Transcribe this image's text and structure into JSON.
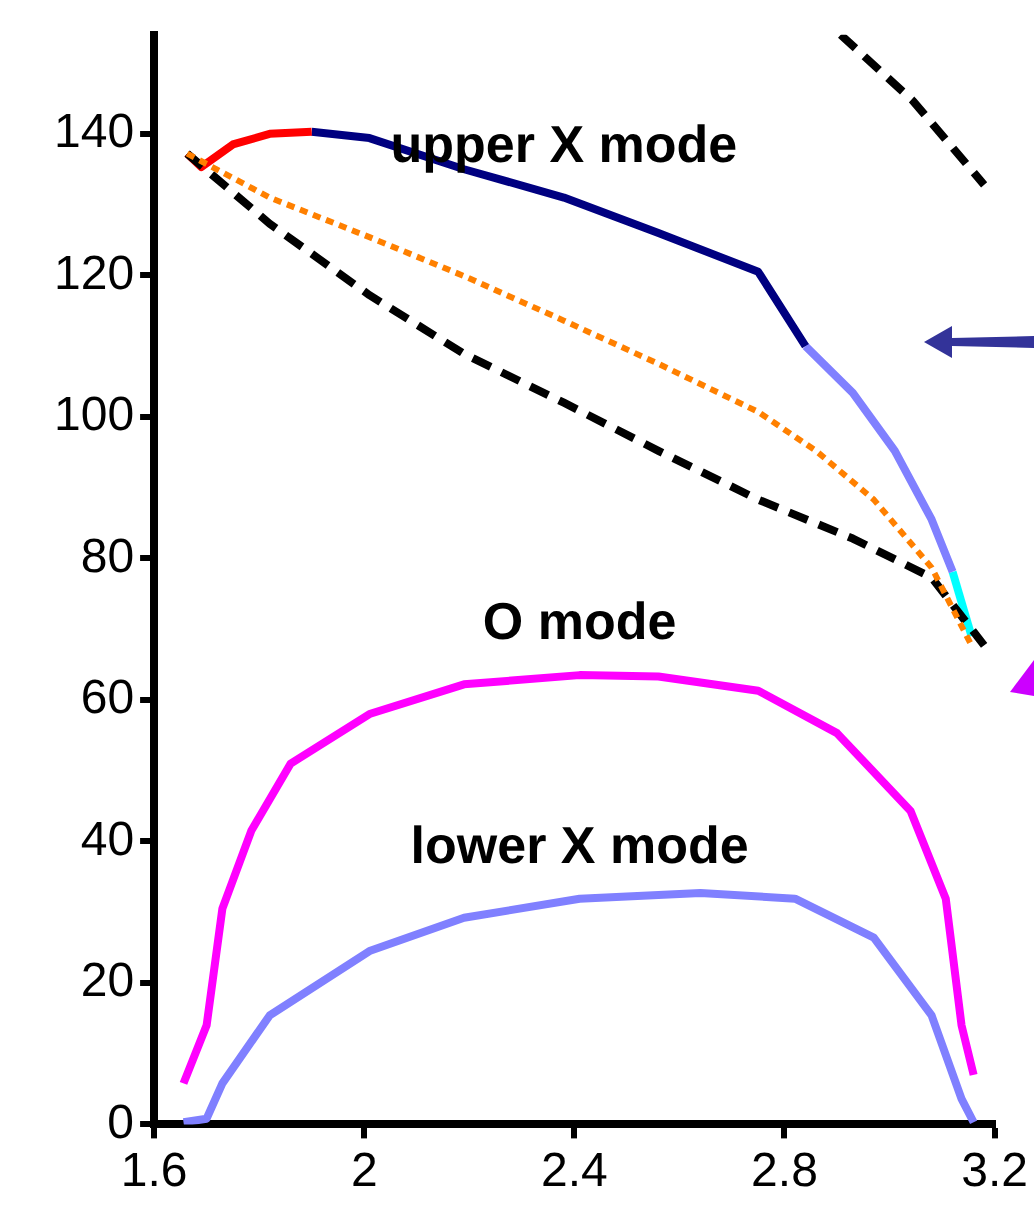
{
  "chart_data": {
    "type": "line",
    "legend": false,
    "grid": false,
    "marker": "none",
    "xlim": [
      1.6,
      3.2
    ],
    "xticks": [
      1.6,
      2,
      2.4,
      2.8,
      3.2
    ],
    "ylim": [
      0,
      154
    ],
    "yticks": [
      0,
      20,
      40,
      60,
      80,
      100,
      120,
      140
    ],
    "series": [
      {
        "color": "#000000",
        "line_style": "dashed",
        "x": [
          1.663,
          1.82,
          2.01,
          2.19,
          2.38,
          2.56,
          2.75,
          2.93,
          3.08,
          3.18
        ],
        "values": [
          137.2,
          127.3,
          117.2,
          108.9,
          102,
          95.2,
          88.3,
          82.8,
          77.3,
          67.7
        ]
      },
      {
        "color": "#000000",
        "line_style": "dashed",
        "x": [
          2.907,
          3.044,
          3.18
        ],
        "values": [
          154,
          144.7,
          132.8
        ]
      },
      {
        "color": "#ff8000",
        "line_style": "dotted",
        "x": [
          1.663,
          1.82,
          2.01,
          2.19,
          2.38,
          2.56,
          2.75,
          2.86,
          2.97,
          3.08,
          3.156
        ],
        "values": [
          137.2,
          131,
          125.4,
          119.9,
          113.6,
          107.5,
          100.7,
          95.2,
          88.3,
          78.7,
          67.7
        ]
      },
      {
        "color": "#ff0000",
        "line_style": "solid",
        "x": [
          1.663,
          1.69,
          1.75,
          1.82,
          1.9
        ],
        "values": [
          137.2,
          135.3,
          138.5,
          140,
          140.3
        ]
      },
      {
        "name": "upper X mode",
        "color": "#000080",
        "line_style": "solid",
        "x": [
          1.9,
          2.01,
          2.19,
          2.38,
          2.56,
          2.75,
          2.84
        ],
        "values": [
          140.3,
          139.4,
          135,
          131,
          126,
          120.5,
          110
        ]
      },
      {
        "color": "#8080ff",
        "line_style": "solid",
        "x": [
          2.84,
          2.93,
          3.01,
          3.08,
          3.12
        ],
        "values": [
          110,
          103.4,
          95.2,
          85.5,
          78.1
        ]
      },
      {
        "color": "#00ffff",
        "line_style": "solid",
        "x": [
          3.12,
          3.156
        ],
        "values": [
          78.1,
          69
        ]
      },
      {
        "name": "O mode",
        "color": "#ff00ff",
        "line_style": "solid",
        "x": [
          1.656,
          1.7,
          1.73,
          1.785,
          1.86,
          2.01,
          2.19,
          2.41,
          2.56,
          2.75,
          2.9,
          3.04,
          3.107,
          3.137,
          3.16
        ],
        "values": [
          5.8,
          14,
          30.5,
          41.5,
          51,
          58,
          62.2,
          63.5,
          63.3,
          61.3,
          55.3,
          44.3,
          31.9,
          14,
          7
        ]
      },
      {
        "name": "lower X mode",
        "color": "#8080ff",
        "line_style": "solid",
        "x": [
          1.656,
          1.7,
          1.73,
          1.82,
          2.01,
          2.19,
          2.41,
          2.64,
          2.82,
          2.97,
          3.08,
          3.137,
          3.16
        ],
        "values": [
          0.3,
          0.8,
          5.8,
          15.4,
          24.5,
          29.2,
          31.9,
          32.7,
          31.9,
          26.4,
          15.4,
          3.6,
          0.3
        ]
      }
    ]
  }
}
